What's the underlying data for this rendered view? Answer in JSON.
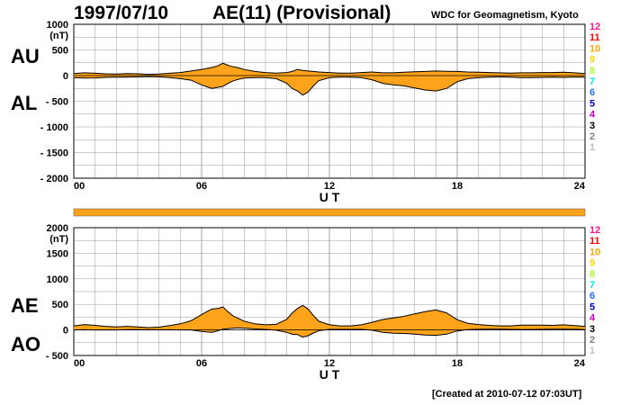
{
  "header": {
    "date": "1997/07/10",
    "title": "AE(11) (Provisional)",
    "source": "WDC for Geomagnetism, Kyoto"
  },
  "footer": {
    "created": "[Created at 2010-07-12 07:03UT]"
  },
  "colors": {
    "fill": "#ffa31a",
    "outline": "#000000",
    "grid": "#999999",
    "band": "#ffa31a"
  },
  "level_legend": [
    {
      "label": "12",
      "color": "#ff1493"
    },
    {
      "label": "11",
      "color": "#ff0000"
    },
    {
      "label": "10",
      "color": "#ffa500"
    },
    {
      "label": "9",
      "color": "#ffd700"
    },
    {
      "label": "8",
      "color": "#adff2f"
    },
    {
      "label": "7",
      "color": "#00e5ee"
    },
    {
      "label": "6",
      "color": "#1e6fff"
    },
    {
      "label": "5",
      "color": "#0000cd"
    },
    {
      "label": "4",
      "color": "#d000d0"
    },
    {
      "label": "3",
      "color": "#000000"
    },
    {
      "label": "2",
      "color": "#808080"
    },
    {
      "label": "1",
      "color": "#c0c0c0"
    }
  ],
  "chart_data": [
    {
      "type": "area",
      "panel": "AU/AL",
      "upper_label": "AU",
      "lower_label": "AL",
      "unit": "(nT)",
      "xlabel": "U T",
      "x_ticks": [
        "00",
        "06",
        "12",
        "18",
        "24"
      ],
      "y_ticks": [
        "1000",
        "500",
        "0",
        "- 500",
        "- 1000",
        "- 1500",
        "- 2000"
      ],
      "xlim": [
        0,
        24
      ],
      "ylim": [
        -2000,
        1000
      ],
      "grid": true,
      "series": [
        {
          "name": "AU",
          "x": [
            0,
            0.5,
            1,
            1.5,
            2,
            2.5,
            3,
            3.5,
            4,
            4.5,
            5,
            5.5,
            6,
            6.25,
            6.5,
            6.75,
            7,
            7.25,
            7.5,
            7.75,
            8,
            8.5,
            9,
            9.5,
            10,
            10.25,
            10.5,
            10.75,
            11,
            11.25,
            11.5,
            12,
            12.5,
            13,
            13.5,
            14,
            14.5,
            15,
            15.5,
            16,
            16.5,
            17,
            17.5,
            18,
            18.5,
            19,
            19.5,
            20,
            20.5,
            21,
            21.5,
            22,
            22.5,
            23,
            23.5,
            24
          ],
          "values": [
            40,
            55,
            45,
            35,
            30,
            40,
            35,
            25,
            30,
            45,
            60,
            90,
            120,
            140,
            160,
            190,
            240,
            200,
            170,
            150,
            120,
            80,
            60,
            50,
            60,
            80,
            120,
            100,
            90,
            80,
            70,
            60,
            50,
            50,
            60,
            70,
            55,
            55,
            65,
            75,
            80,
            90,
            85,
            80,
            70,
            65,
            60,
            55,
            50,
            55,
            55,
            60,
            60,
            65,
            55,
            40
          ]
        },
        {
          "name": "AL",
          "x": [
            0,
            0.5,
            1,
            1.5,
            2,
            2.5,
            3,
            3.5,
            4,
            4.5,
            5,
            5.5,
            6,
            6.25,
            6.5,
            6.75,
            7,
            7.25,
            7.5,
            7.75,
            8,
            8.5,
            9,
            9.5,
            10,
            10.25,
            10.5,
            10.75,
            11,
            11.25,
            11.5,
            12,
            12.5,
            13,
            13.5,
            14,
            14.5,
            15,
            15.5,
            16,
            16.5,
            17,
            17.5,
            18,
            18.5,
            19,
            19.5,
            20,
            20.5,
            21,
            21.5,
            22,
            22.5,
            23,
            23.5,
            24
          ],
          "values": [
            -40,
            -50,
            -45,
            -35,
            -30,
            -30,
            -25,
            -20,
            -25,
            -40,
            -60,
            -90,
            -180,
            -220,
            -250,
            -230,
            -210,
            -150,
            -100,
            -70,
            -50,
            -40,
            -40,
            -60,
            -150,
            -250,
            -300,
            -380,
            -320,
            -200,
            -100,
            -40,
            -30,
            -30,
            -40,
            -80,
            -150,
            -180,
            -200,
            -240,
            -280,
            -300,
            -250,
            -120,
            -60,
            -40,
            -30,
            -25,
            -30,
            -40,
            -40,
            -35,
            -30,
            -35,
            -30,
            -30
          ]
        }
      ]
    },
    {
      "type": "area",
      "panel": "AE/AO",
      "upper_label": "AE",
      "lower_label": "AO",
      "unit": "(nT)",
      "xlabel": "U T",
      "x_ticks": [
        "00",
        "06",
        "12",
        "18",
        "24"
      ],
      "y_ticks": [
        "2000",
        "1500",
        "1000",
        "500",
        "0",
        "- 500"
      ],
      "xlim": [
        0,
        24
      ],
      "ylim": [
        -500,
        2000
      ],
      "grid": true,
      "series": [
        {
          "name": "AE",
          "x": [
            0,
            0.5,
            1,
            1.5,
            2,
            2.5,
            3,
            3.5,
            4,
            4.5,
            5,
            5.5,
            6,
            6.25,
            6.5,
            6.75,
            7,
            7.25,
            7.5,
            7.75,
            8,
            8.5,
            9,
            9.5,
            10,
            10.25,
            10.5,
            10.75,
            11,
            11.25,
            11.5,
            12,
            12.5,
            13,
            13.5,
            14,
            14.5,
            15,
            15.5,
            16,
            16.5,
            17,
            17.5,
            18,
            18.5,
            19,
            19.5,
            20,
            20.5,
            21,
            21.5,
            22,
            22.5,
            23,
            23.5,
            24
          ],
          "values": [
            80,
            105,
            90,
            70,
            60,
            70,
            60,
            45,
            55,
            85,
            120,
            180,
            300,
            360,
            410,
            420,
            450,
            350,
            270,
            220,
            170,
            120,
            100,
            110,
            210,
            330,
            420,
            480,
            410,
            280,
            170,
            100,
            80,
            80,
            100,
            150,
            205,
            235,
            265,
            315,
            360,
            390,
            335,
            200,
            130,
            105,
            90,
            80,
            80,
            95,
            95,
            95,
            90,
            100,
            85,
            70
          ]
        },
        {
          "name": "AO",
          "x": [
            0,
            0.5,
            1,
            1.5,
            2,
            2.5,
            3,
            3.5,
            4,
            4.5,
            5,
            5.5,
            6,
            6.25,
            6.5,
            6.75,
            7,
            7.25,
            7.5,
            7.75,
            8,
            8.5,
            9,
            9.5,
            10,
            10.25,
            10.5,
            10.75,
            11,
            11.25,
            11.5,
            12,
            12.5,
            13,
            13.5,
            14,
            14.5,
            15,
            15.5,
            16,
            16.5,
            17,
            17.5,
            18,
            18.5,
            19,
            19.5,
            20,
            20.5,
            21,
            21.5,
            22,
            22.5,
            23,
            23.5,
            24
          ],
          "values": [
            0,
            3,
            0,
            0,
            0,
            5,
            5,
            3,
            3,
            3,
            0,
            0,
            -30,
            -40,
            -45,
            -20,
            15,
            25,
            35,
            40,
            35,
            20,
            10,
            -5,
            -45,
            -85,
            -90,
            -140,
            -115,
            -60,
            -15,
            10,
            10,
            10,
            10,
            -5,
            -48,
            -63,
            -68,
            -83,
            -100,
            -105,
            -83,
            -20,
            5,
            13,
            15,
            15,
            10,
            8,
            8,
            13,
            15,
            15,
            13,
            5
          ]
        }
      ]
    }
  ]
}
